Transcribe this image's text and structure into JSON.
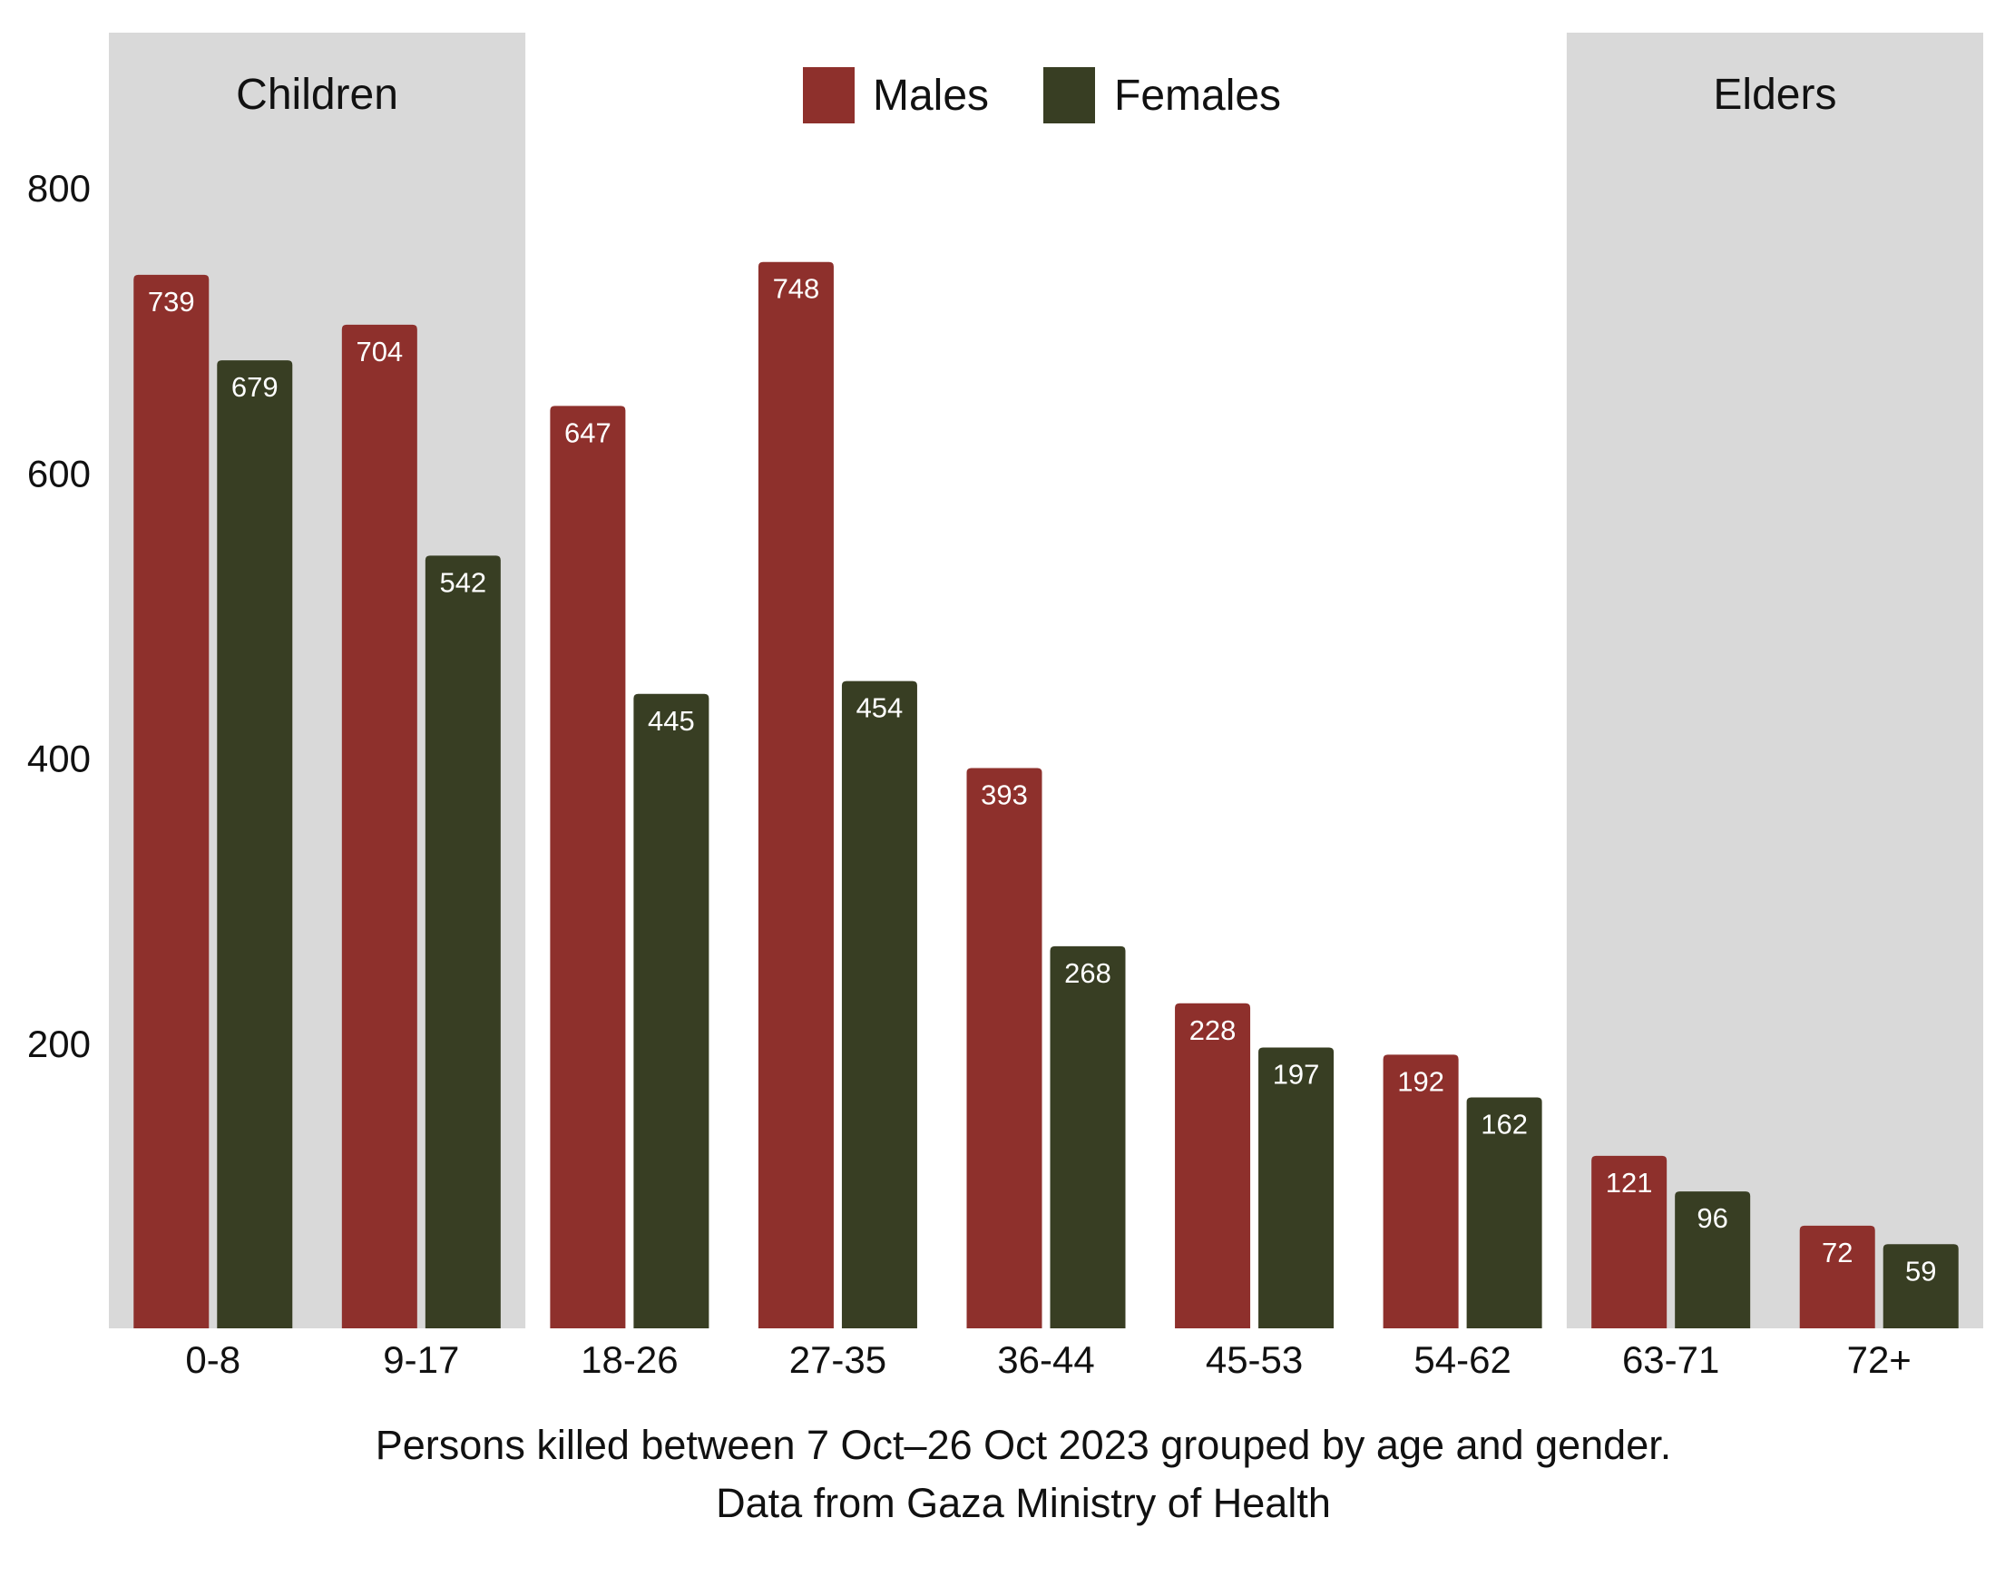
{
  "chart_data": {
    "type": "bar",
    "categories": [
      "0-8",
      "9-17",
      "18-26",
      "27-35",
      "36-44",
      "45-53",
      "54-62",
      "63-71",
      "72+"
    ],
    "series": [
      {
        "name": "Males",
        "color": "#8e302c",
        "values": [
          739,
          704,
          647,
          748,
          393,
          228,
          192,
          121,
          72
        ]
      },
      {
        "name": "Females",
        "color": "#383e23",
        "values": [
          679,
          542,
          445,
          454,
          268,
          197,
          162,
          96,
          59
        ]
      }
    ],
    "ylim": [
      0,
      900
    ],
    "yticks": [
      200,
      400,
      600,
      800
    ],
    "title": "",
    "xlabel": "",
    "ylabel": "",
    "legend": "top-center",
    "grid": false,
    "bands": [
      {
        "label": "Children",
        "from_category": "0-8",
        "to_category": "9-17",
        "color": "#d9d9d9"
      },
      {
        "label": "Elders",
        "from_category": "63-71",
        "to_category": "72+",
        "color": "#d9d9d9"
      }
    ],
    "caption": [
      "Persons killed between 7 Oct–26 Oct 2023 grouped by age and gender.",
      "Data from Gaza Ministry of Health"
    ]
  }
}
